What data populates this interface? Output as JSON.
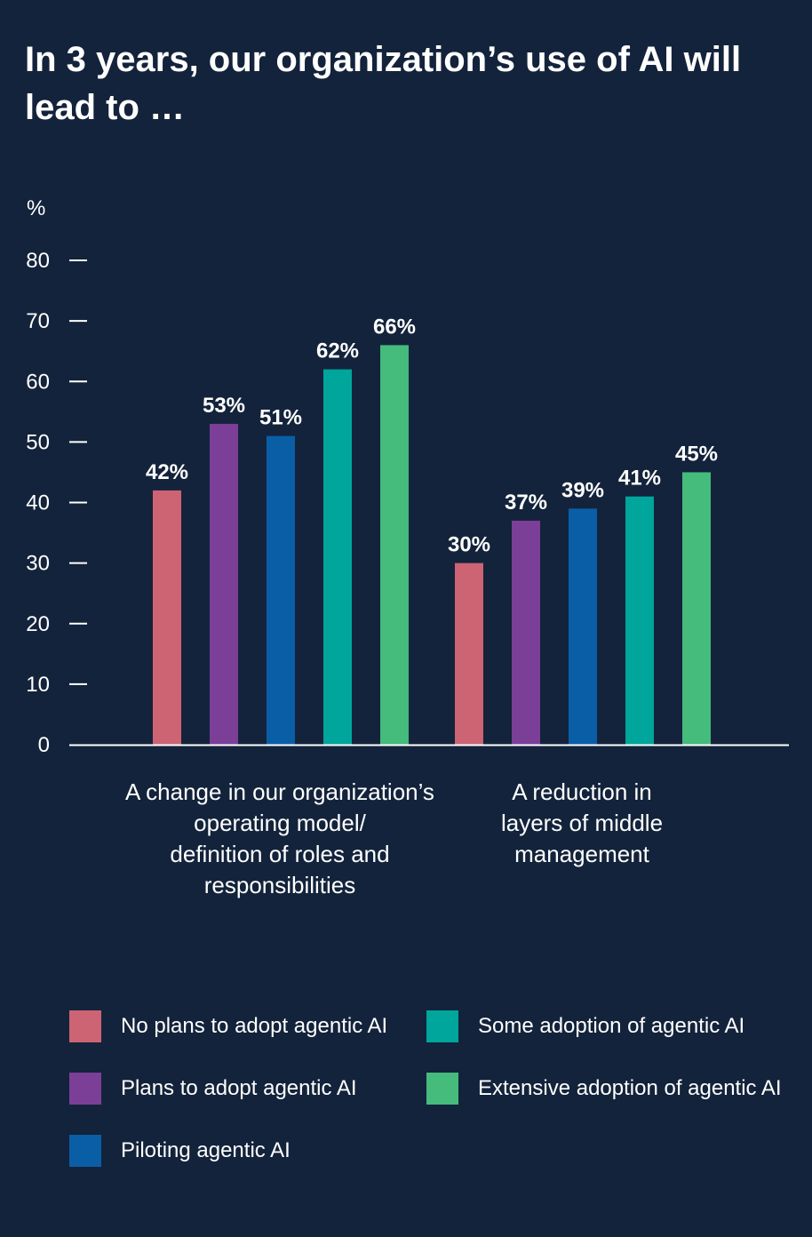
{
  "chart_data": {
    "type": "bar",
    "title": "In 3 years, our organization’s use of AI will lead to …",
    "ylabel": "%",
    "ylim": [
      0,
      80
    ],
    "yticks": [
      0,
      10,
      20,
      30,
      40,
      50,
      60,
      70,
      80
    ],
    "categories": [
      "A change in our organization’s\noperating model/\ndefinition of roles and\nresponsibilities",
      "A reduction in\nlayers of middle\nmanagement"
    ],
    "series": [
      {
        "name": "No plans to adopt agentic AI",
        "color": "#cd6474",
        "values": [
          42,
          30
        ],
        "labels": [
          "42%",
          "30%"
        ]
      },
      {
        "name": "Plans to  adopt agentic AI",
        "color": "#7b3f98",
        "values": [
          53,
          37
        ],
        "labels": [
          "53%",
          "37%"
        ]
      },
      {
        "name": "Piloting agentic AI",
        "color": "#0a5ea6",
        "values": [
          51,
          39
        ],
        "labels": [
          "51%",
          "39%"
        ]
      },
      {
        "name": "Some adoption of agentic AI",
        "color": "#00a59b",
        "values": [
          62,
          41
        ],
        "labels": [
          "62%",
          "41%"
        ]
      },
      {
        "name": "Extensive adoption of agentic AI",
        "color": "#45bb7c",
        "values": [
          66,
          45
        ],
        "labels": [
          "66%",
          "45%"
        ]
      }
    ],
    "legend_position": "bottom"
  }
}
